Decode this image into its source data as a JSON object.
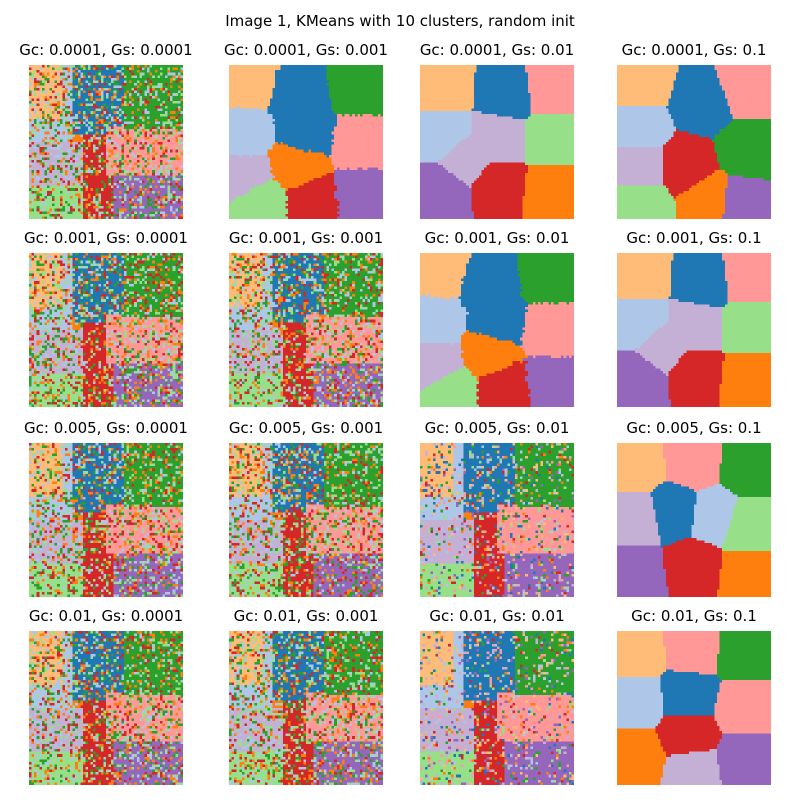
{
  "figure": {
    "suptitle": "Image 1, KMeans with 10 clusters, random init"
  },
  "chart_data": {
    "type": "heatmap",
    "title": "Image 1, KMeans with 10 clusters, random init",
    "axes_visible": false,
    "colormap": "tab20-like (10 clusters)",
    "cluster_colors": [
      "#1f77b4",
      "#aec7e8",
      "#ff7f0e",
      "#ffbb78",
      "#2ca02c",
      "#98df8a",
      "#d62728",
      "#ff9896",
      "#9467bd",
      "#c5b0d5"
    ],
    "panels": [
      {
        "title": "Gc: 0.0001, Gs: 0.0001",
        "gc": "0.0001",
        "gs": "0.0001",
        "style": "noisy"
      },
      {
        "title": "Gc: 0.0001, Gs: 0.001",
        "gc": "0.0001",
        "gs": "0.001",
        "style": "regions"
      },
      {
        "title": "Gc: 0.0001, Gs: 0.01",
        "gc": "0.0001",
        "gs": "0.01",
        "style": "voronoi"
      },
      {
        "title": "Gc: 0.0001, Gs: 0.1",
        "gc": "0.0001",
        "gs": "0.1",
        "style": "voronoi"
      },
      {
        "title": "Gc: 0.001, Gs: 0.0001",
        "gc": "0.001",
        "gs": "0.0001",
        "style": "noisy"
      },
      {
        "title": "Gc: 0.001, Gs: 0.001",
        "gc": "0.001",
        "gs": "0.001",
        "style": "noisy"
      },
      {
        "title": "Gc: 0.001, Gs: 0.01",
        "gc": "0.001",
        "gs": "0.01",
        "style": "regions"
      },
      {
        "title": "Gc: 0.001, Gs: 0.1",
        "gc": "0.001",
        "gs": "0.1",
        "style": "voronoi"
      },
      {
        "title": "Gc: 0.005, Gs: 0.0001",
        "gc": "0.005",
        "gs": "0.0001",
        "style": "noisy"
      },
      {
        "title": "Gc: 0.005, Gs: 0.001",
        "gc": "0.005",
        "gs": "0.001",
        "style": "noisy"
      },
      {
        "title": "Gc: 0.005, Gs: 0.01",
        "gc": "0.005",
        "gs": "0.01",
        "style": "mixed"
      },
      {
        "title": "Gc: 0.005, Gs: 0.1",
        "gc": "0.005",
        "gs": "0.1",
        "style": "voronoi"
      },
      {
        "title": "Gc: 0.01, Gs: 0.0001",
        "gc": "0.01",
        "gs": "0.0001",
        "style": "noisy"
      },
      {
        "title": "Gc: 0.01, Gs: 0.001",
        "gc": "0.01",
        "gs": "0.001",
        "style": "noisy"
      },
      {
        "title": "Gc: 0.01, Gs: 0.01",
        "gc": "0.01",
        "gs": "0.01",
        "style": "mixed"
      },
      {
        "title": "Gc: 0.01, Gs: 0.1",
        "gc": "0.01",
        "gs": "0.1",
        "style": "voronoi"
      }
    ]
  }
}
